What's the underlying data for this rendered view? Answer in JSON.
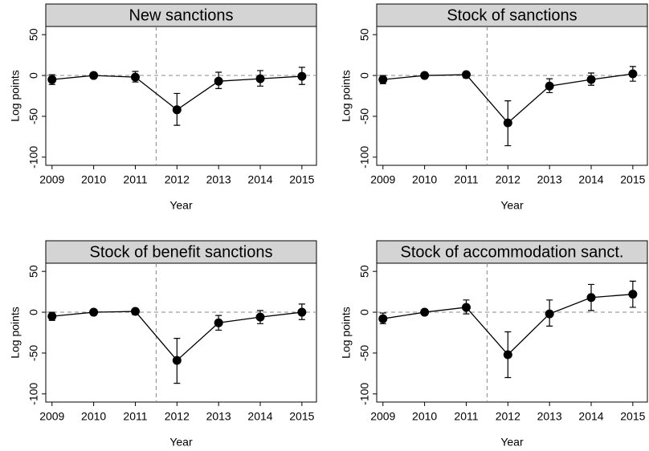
{
  "chart_data": [
    {
      "type": "line",
      "title": "New sanctions",
      "xlabel": "Year",
      "ylabel": "Log points",
      "x": [
        2009,
        2010,
        2011,
        2012,
        2013,
        2014,
        2015
      ],
      "xlim": [
        2008.85,
        2015.35
      ],
      "xticks": [
        2009,
        2010,
        2011,
        2012,
        2013,
        2014,
        2015
      ],
      "ylim": [
        -110,
        60
      ],
      "yticks": [
        -100,
        -50,
        0,
        50
      ],
      "vline": 2011.5,
      "hline": 0,
      "series": [
        {
          "color": "#000000",
          "values": [
            -5,
            0,
            -2,
            -42,
            -7,
            -4,
            -1
          ],
          "lower": [
            -11,
            -2,
            -8,
            -61,
            -16,
            -13,
            -11
          ],
          "upper": [
            1,
            2,
            5,
            -22,
            4,
            6,
            10
          ]
        }
      ]
    },
    {
      "type": "line",
      "title": "Stock of sanctions",
      "xlabel": "Year",
      "ylabel": "Log points",
      "x": [
        2009,
        2010,
        2011,
        2012,
        2013,
        2014,
        2015
      ],
      "xlim": [
        2008.85,
        2015.35
      ],
      "xticks": [
        2009,
        2010,
        2011,
        2012,
        2013,
        2014,
        2015
      ],
      "ylim": [
        -110,
        60
      ],
      "yticks": [
        -100,
        -50,
        0,
        50
      ],
      "vline": 2011.5,
      "hline": 0,
      "series": [
        {
          "color": "#000000",
          "values": [
            -5,
            0,
            1,
            -58,
            -13,
            -5,
            2
          ],
          "lower": [
            -10,
            -2,
            -3,
            -86,
            -21,
            -12,
            -7
          ],
          "upper": [
            0,
            2,
            4,
            -31,
            -4,
            3,
            11
          ]
        }
      ]
    },
    {
      "type": "line",
      "title": "Stock of benefit sanctions",
      "xlabel": "Year",
      "ylabel": "Log points",
      "x": [
        2009,
        2010,
        2011,
        2012,
        2013,
        2014,
        2015
      ],
      "xlim": [
        2008.85,
        2015.35
      ],
      "xticks": [
        2009,
        2010,
        2011,
        2012,
        2013,
        2014,
        2015
      ],
      "ylim": [
        -110,
        60
      ],
      "yticks": [
        -100,
        -50,
        0,
        50
      ],
      "vline": 2011.5,
      "hline": 0,
      "series": [
        {
          "color": "#000000",
          "values": [
            -5,
            0,
            1,
            -59,
            -13,
            -6,
            0
          ],
          "lower": [
            -10,
            -2,
            -3,
            -87,
            -22,
            -14,
            -9
          ],
          "upper": [
            0,
            2,
            4,
            -32,
            -4,
            2,
            10
          ]
        }
      ]
    },
    {
      "type": "line",
      "title": "Stock of accommodation sanct.",
      "xlabel": "Year",
      "ylabel": "Log points",
      "x": [
        2009,
        2010,
        2011,
        2012,
        2013,
        2014,
        2015
      ],
      "xlim": [
        2008.85,
        2015.35
      ],
      "xticks": [
        2009,
        2010,
        2011,
        2012,
        2013,
        2014,
        2015
      ],
      "ylim": [
        -110,
        60
      ],
      "yticks": [
        -100,
        -50,
        0,
        50
      ],
      "vline": 2011.5,
      "hline": 0,
      "series": [
        {
          "color": "#000000",
          "values": [
            -8,
            0,
            6,
            -52,
            -2,
            18,
            22
          ],
          "lower": [
            -14,
            -2,
            -2,
            -80,
            -17,
            2,
            6
          ],
          "upper": [
            -1,
            2,
            15,
            -24,
            15,
            34,
            38
          ]
        }
      ]
    }
  ]
}
